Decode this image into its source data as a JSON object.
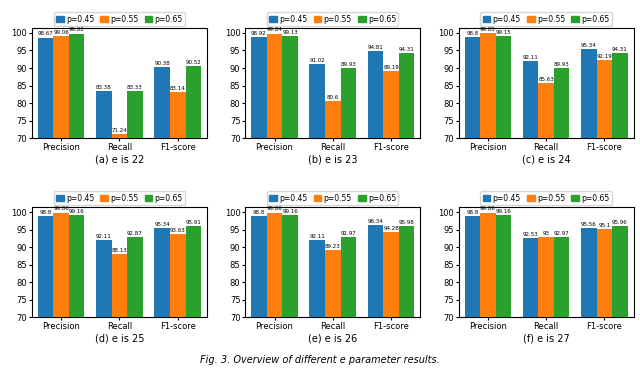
{
  "figure_caption": "Fig. 3. Overview of different e parameter results.",
  "chart_data": [
    {
      "type": "bar",
      "xlabel": "(a) e is 22",
      "categories": [
        "Precision",
        "Recall",
        "F1-score"
      ],
      "series": [
        {
          "name": "p=0.45",
          "values": [
            98.67,
            83.38,
            90.38
          ]
        },
        {
          "name": "p=0.55",
          "values": [
            99.06,
            71.24,
            83.14
          ]
        },
        {
          "name": "p=0.65",
          "values": [
            99.82,
            83.33,
            90.52
          ]
        }
      ],
      "ylim": [
        70,
        101.5
      ],
      "yticks": [
        70,
        75,
        80,
        85,
        90,
        95,
        100
      ],
      "grid": false,
      "legend": "upper center",
      "data_labels": true
    },
    {
      "type": "bar",
      "xlabel": "(b) e is 23",
      "categories": [
        "Precision",
        "Recall",
        "F1-score"
      ],
      "series": [
        {
          "name": "p=0.45",
          "values": [
            98.92,
            91.02,
            94.81
          ]
        },
        {
          "name": "p=0.55",
          "values": [
            99.84,
            80.6,
            89.19
          ]
        },
        {
          "name": "p=0.65",
          "values": [
            99.13,
            89.93,
            94.31
          ]
        }
      ],
      "ylim": [
        70,
        101.5
      ],
      "yticks": [
        70,
        75,
        80,
        85,
        90,
        95,
        100
      ],
      "grid": false,
      "legend": "upper center",
      "data_labels": true
    },
    {
      "type": "bar",
      "xlabel": "(c) e is 24",
      "categories": [
        "Precision",
        "Recall",
        "F1-score"
      ],
      "series": [
        {
          "name": "p=0.45",
          "values": [
            98.8,
            92.11,
            95.34
          ]
        },
        {
          "name": "p=0.55",
          "values": [
            99.85,
            85.63,
            92.19
          ]
        },
        {
          "name": "p=0.65",
          "values": [
            99.15,
            89.93,
            94.31
          ]
        }
      ],
      "ylim": [
        70,
        101.5
      ],
      "yticks": [
        70,
        75,
        80,
        85,
        90,
        95,
        100
      ],
      "grid": false,
      "legend": "upper center",
      "data_labels": true
    },
    {
      "type": "bar",
      "xlabel": "(d) e is 25",
      "categories": [
        "Precision",
        "Recall",
        "F1-score"
      ],
      "series": [
        {
          "name": "p=0.45",
          "values": [
            98.8,
            92.11,
            95.34
          ]
        },
        {
          "name": "p=0.55",
          "values": [
            99.86,
            88.13,
            93.63
          ]
        },
        {
          "name": "p=0.65",
          "values": [
            99.16,
            92.87,
            95.91
          ]
        }
      ],
      "ylim": [
        70,
        101.5
      ],
      "yticks": [
        70,
        75,
        80,
        85,
        90,
        95,
        100
      ],
      "grid": false,
      "legend": "upper center",
      "data_labels": true
    },
    {
      "type": "bar",
      "xlabel": "(e) e is 26",
      "categories": [
        "Precision",
        "Recall",
        "F1-score"
      ],
      "series": [
        {
          "name": "p=0.45",
          "values": [
            98.8,
            92.11,
            96.34
          ]
        },
        {
          "name": "p=0.55",
          "values": [
            99.86,
            89.23,
            94.28
          ]
        },
        {
          "name": "p=0.65",
          "values": [
            99.16,
            92.97,
            95.98
          ]
        }
      ],
      "ylim": [
        70,
        101.5
      ],
      "yticks": [
        70,
        75,
        80,
        85,
        90,
        95,
        100
      ],
      "grid": false,
      "legend": "upper center",
      "data_labels": true
    },
    {
      "type": "bar",
      "xlabel": "(f) e is 27",
      "categories": [
        "Precision",
        "Recall",
        "F1-score"
      ],
      "series": [
        {
          "name": "p=0.45",
          "values": [
            98.8,
            92.53,
            95.56
          ]
        },
        {
          "name": "p=0.55",
          "values": [
            99.86,
            93,
            95.1
          ]
        },
        {
          "name": "p=0.65",
          "values": [
            99.16,
            92.97,
            95.96
          ]
        }
      ],
      "ylim": [
        70,
        101.5
      ],
      "yticks": [
        70,
        75,
        80,
        85,
        90,
        95,
        100
      ],
      "grid": false,
      "legend": "upper center",
      "data_labels": true
    }
  ]
}
